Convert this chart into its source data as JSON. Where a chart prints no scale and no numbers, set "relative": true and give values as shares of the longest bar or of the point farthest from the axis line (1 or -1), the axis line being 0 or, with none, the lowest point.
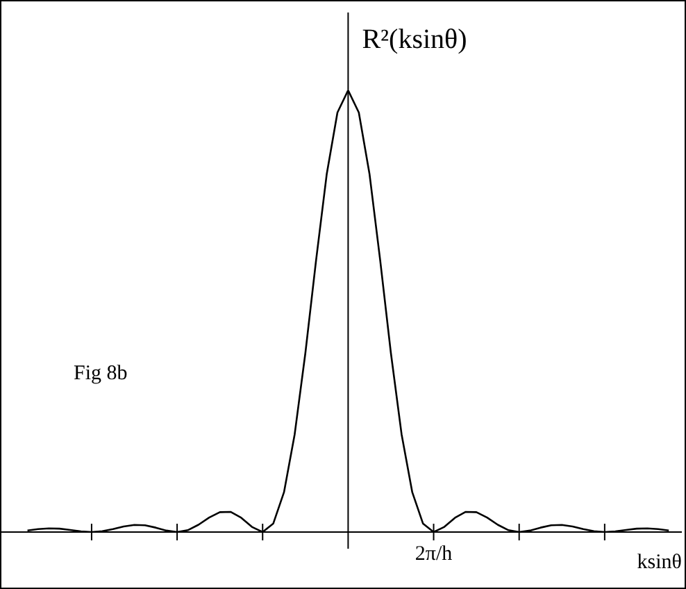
{
  "chart_data": {
    "type": "line",
    "relative": true,
    "ylabel": "R²(ksinθ)",
    "xlabel": "ksinθ",
    "annotations": [
      "Fig 8b",
      "2π/h"
    ],
    "categories": [
      null,
      null,
      null,
      null,
      null,
      null,
      null,
      null,
      null,
      null,
      null,
      null,
      null,
      null,
      null,
      null,
      null,
      null,
      null,
      null,
      null,
      null,
      null,
      null,
      null,
      null,
      null,
      null,
      null,
      null,
      null,
      null,
      null,
      null,
      null,
      null,
      null,
      null,
      null,
      null,
      null,
      null,
      null,
      null,
      null,
      null,
      null,
      null,
      null,
      null,
      null,
      null,
      null,
      null,
      null,
      null,
      null,
      null,
      null,
      null,
      null
    ],
    "series": [
      {
        "color": "#000000",
        "values": [
          0.0036,
          0.0066,
          0.0083,
          0.0076,
          0.0048,
          0.0015,
          0,
          0.0018,
          0.0067,
          0.0126,
          0.0162,
          0.0153,
          0.01,
          0.0033,
          0,
          0.0042,
          0.0165,
          0.0327,
          0.045,
          0.0457,
          0.0324,
          0.0117,
          0,
          0.0194,
          0.0901,
          0.2214,
          0.4053,
          0.615,
          0.8106,
          0.9497,
          1,
          0.9497,
          0.8106,
          0.615,
          0.4053,
          0.2214,
          0.0901,
          0.0194,
          0,
          0.0117,
          0.0324,
          0.0457,
          0.045,
          0.0327,
          0.0165,
          0.0042,
          0,
          0.0033,
          0.01,
          0.0153,
          0.0162,
          0.0126,
          0.0067,
          0.0018,
          0,
          0.0015,
          0.0048,
          0.0076,
          0.0083,
          0.0066,
          0.0036
        ]
      }
    ],
    "legend": false,
    "marker": "none",
    "line_style": "solid"
  }
}
